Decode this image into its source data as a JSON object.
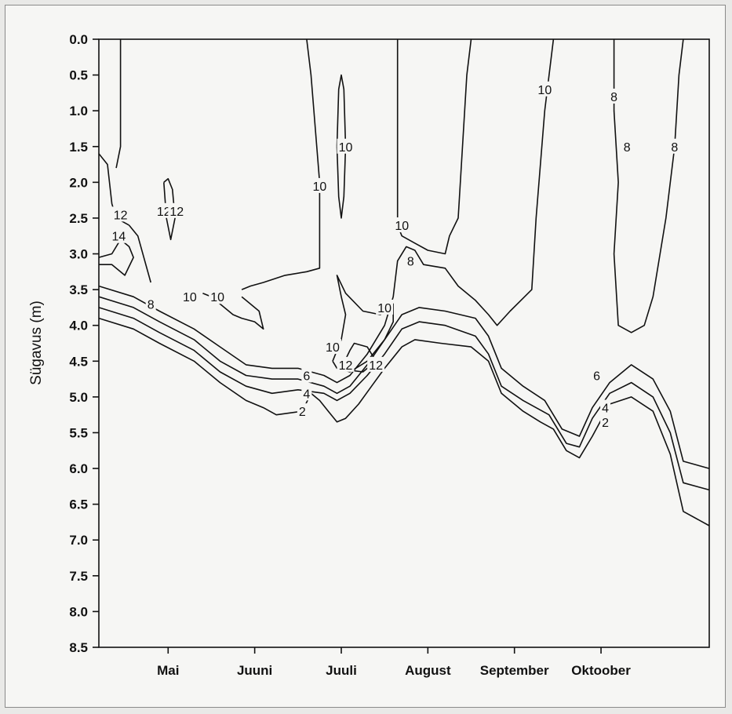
{
  "chart_data": {
    "type": "contour",
    "title": "",
    "xlabel": "",
    "ylabel": "Sügavus (m)",
    "y_axis": {
      "min": 0.0,
      "max": 8.5,
      "inverted": true,
      "ticks": [
        "0.0",
        "0.5",
        "1.0",
        "1.5",
        "2.0",
        "2.5",
        "3.0",
        "3.5",
        "4.0",
        "4.5",
        "5.0",
        "5.5",
        "6.0",
        "6.5",
        "7.0",
        "7.5",
        "8.0",
        "8.5"
      ]
    },
    "x_axis": {
      "categories": [
        "Mai",
        "Juuni",
        "Juuli",
        "August",
        "September",
        "Oktoober"
      ],
      "range_months": [
        3.2,
        10.25
      ]
    },
    "contour_levels": [
      "2",
      "4",
      "6",
      "8",
      "10",
      "12",
      "14"
    ],
    "contours": [
      {
        "level": 2,
        "points": [
          [
            3.2,
            3.9
          ],
          [
            3.6,
            4.05
          ],
          [
            3.9,
            4.25
          ],
          [
            4.3,
            4.5
          ],
          [
            4.6,
            4.8
          ],
          [
            4.9,
            5.05
          ],
          [
            5.1,
            5.15
          ],
          [
            5.25,
            5.25
          ],
          [
            5.55,
            5.2
          ],
          [
            5.65,
            4.95
          ],
          [
            5.75,
            5.05
          ],
          [
            5.85,
            5.2
          ],
          [
            5.95,
            5.35
          ],
          [
            6.05,
            5.3
          ],
          [
            6.2,
            5.1
          ],
          [
            6.35,
            4.85
          ],
          [
            6.5,
            4.6
          ],
          [
            6.7,
            4.3
          ],
          [
            6.85,
            4.2
          ],
          [
            7.15,
            4.25
          ],
          [
            7.5,
            4.3
          ],
          [
            7.7,
            4.5
          ],
          [
            7.85,
            4.95
          ],
          [
            8.1,
            5.2
          ],
          [
            8.3,
            5.35
          ],
          [
            8.45,
            5.45
          ],
          [
            8.6,
            5.75
          ],
          [
            8.75,
            5.85
          ],
          [
            8.9,
            5.55
          ],
          [
            9.1,
            5.1
          ],
          [
            9.35,
            5.0
          ],
          [
            9.6,
            5.2
          ],
          [
            9.8,
            5.8
          ],
          [
            9.95,
            6.6
          ],
          [
            10.25,
            6.8
          ]
        ]
      },
      {
        "level": 4,
        "points": [
          [
            3.2,
            3.75
          ],
          [
            3.6,
            3.9
          ],
          [
            3.9,
            4.1
          ],
          [
            4.3,
            4.35
          ],
          [
            4.6,
            4.65
          ],
          [
            4.9,
            4.85
          ],
          [
            5.2,
            4.95
          ],
          [
            5.5,
            4.9
          ],
          [
            5.8,
            4.95
          ],
          [
            5.95,
            5.05
          ],
          [
            6.1,
            4.95
          ],
          [
            6.3,
            4.7
          ],
          [
            6.5,
            4.4
          ],
          [
            6.7,
            4.05
          ],
          [
            6.9,
            3.95
          ],
          [
            7.2,
            4.0
          ],
          [
            7.55,
            4.15
          ],
          [
            7.7,
            4.4
          ],
          [
            7.85,
            4.85
          ],
          [
            8.1,
            5.05
          ],
          [
            8.4,
            5.25
          ],
          [
            8.6,
            5.65
          ],
          [
            8.75,
            5.7
          ],
          [
            8.9,
            5.3
          ],
          [
            9.1,
            4.95
          ],
          [
            9.35,
            4.8
          ],
          [
            9.6,
            5.0
          ],
          [
            9.8,
            5.5
          ],
          [
            9.95,
            6.2
          ],
          [
            10.25,
            6.3
          ]
        ]
      },
      {
        "level": 6,
        "points": [
          [
            3.2,
            3.6
          ],
          [
            3.6,
            3.75
          ],
          [
            3.9,
            3.95
          ],
          [
            4.3,
            4.2
          ],
          [
            4.6,
            4.5
          ],
          [
            4.9,
            4.7
          ],
          [
            5.2,
            4.75
          ],
          [
            5.5,
            4.75
          ],
          [
            5.8,
            4.85
          ],
          [
            5.95,
            4.95
          ],
          [
            6.1,
            4.85
          ],
          [
            6.3,
            4.55
          ],
          [
            6.5,
            4.2
          ],
          [
            6.7,
            3.85
          ],
          [
            6.9,
            3.75
          ],
          [
            7.2,
            3.8
          ],
          [
            7.55,
            3.9
          ],
          [
            7.7,
            4.15
          ],
          [
            7.85,
            4.6
          ],
          [
            8.1,
            4.85
          ],
          [
            8.35,
            5.05
          ],
          [
            8.55,
            5.45
          ],
          [
            8.75,
            5.55
          ],
          [
            8.9,
            5.15
          ],
          [
            9.1,
            4.8
          ],
          [
            9.35,
            4.55
          ],
          [
            9.6,
            4.75
          ],
          [
            9.8,
            5.2
          ],
          [
            9.95,
            5.9
          ],
          [
            10.25,
            6.0
          ]
        ]
      },
      {
        "level": 8,
        "points": [
          [
            3.2,
            3.45
          ],
          [
            3.6,
            3.6
          ],
          [
            3.9,
            3.8
          ],
          [
            4.3,
            4.05
          ],
          [
            4.6,
            4.3
          ],
          [
            4.9,
            4.55
          ],
          [
            5.2,
            4.6
          ],
          [
            5.5,
            4.6
          ],
          [
            5.8,
            4.7
          ],
          [
            5.95,
            4.8
          ],
          [
            6.1,
            4.7
          ],
          [
            6.3,
            4.4
          ],
          [
            6.5,
            4.0
          ],
          [
            6.6,
            3.6
          ],
          [
            6.65,
            3.1
          ],
          [
            6.75,
            2.9
          ],
          [
            6.85,
            2.95
          ],
          [
            6.95,
            3.15
          ],
          [
            7.2,
            3.2
          ],
          [
            7.35,
            3.45
          ],
          [
            7.55,
            3.65
          ],
          [
            7.7,
            3.85
          ],
          [
            7.8,
            4.0
          ],
          [
            7.95,
            3.8
          ],
          [
            8.2,
            3.5
          ],
          [
            8.25,
            2.5
          ],
          [
            8.35,
            1.0
          ],
          [
            8.45,
            0.0
          ]
        ]
      },
      {
        "level": 8,
        "points": [
          [
            9.15,
            0.0
          ],
          [
            9.15,
            1.0
          ],
          [
            9.2,
            2.0
          ],
          [
            9.15,
            3.0
          ],
          [
            9.2,
            4.0
          ],
          [
            9.35,
            4.1
          ],
          [
            9.5,
            4.0
          ],
          [
            9.6,
            3.6
          ],
          [
            9.75,
            2.5
          ],
          [
            9.85,
            1.5
          ],
          [
            9.9,
            0.5
          ],
          [
            9.95,
            0.0
          ]
        ]
      },
      {
        "level": 10,
        "points": [
          [
            4.85,
            3.5
          ],
          [
            4.95,
            3.45
          ],
          [
            5.1,
            3.4
          ],
          [
            5.35,
            3.3
          ],
          [
            5.6,
            3.25
          ],
          [
            5.75,
            3.2
          ],
          [
            5.75,
            2.0
          ],
          [
            5.65,
            0.5
          ],
          [
            5.6,
            0.0
          ]
        ]
      },
      {
        "level": 10,
        "points": [
          [
            6.65,
            0.0
          ],
          [
            6.65,
            1.5
          ],
          [
            6.65,
            2.6
          ],
          [
            6.7,
            2.75
          ],
          [
            6.85,
            2.85
          ],
          [
            7.0,
            2.95
          ],
          [
            7.2,
            3.0
          ],
          [
            7.25,
            2.75
          ],
          [
            7.35,
            2.5
          ],
          [
            7.4,
            1.5
          ],
          [
            7.45,
            0.5
          ],
          [
            7.5,
            0.0
          ]
        ]
      },
      {
        "level": 10,
        "points": [
          [
            4.4,
            3.55
          ],
          [
            4.5,
            3.6
          ],
          [
            4.6,
            3.7
          ],
          [
            4.75,
            3.85
          ],
          [
            4.85,
            3.9
          ],
          [
            5.0,
            3.95
          ],
          [
            5.1,
            4.05
          ],
          [
            5.05,
            3.8
          ],
          [
            4.85,
            3.6
          ]
        ]
      },
      {
        "level": 10,
        "points": [
          [
            5.9,
            4.5
          ],
          [
            6.0,
            4.2
          ],
          [
            6.05,
            3.85
          ],
          [
            6.0,
            3.6
          ],
          [
            5.95,
            3.3
          ],
          [
            6.05,
            3.55
          ],
          [
            6.25,
            3.8
          ],
          [
            6.45,
            3.85
          ],
          [
            6.6,
            3.7
          ],
          [
            6.6,
            3.95
          ],
          [
            6.5,
            4.2
          ],
          [
            6.3,
            4.5
          ],
          [
            6.1,
            4.65
          ],
          [
            5.95,
            4.6
          ],
          [
            5.9,
            4.5
          ]
        ]
      },
      {
        "level": 10,
        "points": [
          [
            5.95,
            1.5
          ],
          [
            5.97,
            0.7
          ],
          [
            6.0,
            0.5
          ],
          [
            6.03,
            0.7
          ],
          [
            6.05,
            1.5
          ],
          [
            6.03,
            2.2
          ],
          [
            6.0,
            2.5
          ],
          [
            5.97,
            2.2
          ],
          [
            5.95,
            1.5
          ]
        ]
      },
      {
        "level": 12,
        "points": [
          [
            3.2,
            1.6
          ],
          [
            3.3,
            1.75
          ],
          [
            3.35,
            2.3
          ],
          [
            3.4,
            2.5
          ],
          [
            3.55,
            2.6
          ]
        ]
      },
      {
        "level": 12,
        "points": [
          [
            3.4,
            1.8
          ],
          [
            3.45,
            1.5
          ],
          [
            3.45,
            0.0
          ]
        ]
      },
      {
        "level": 12,
        "points": [
          [
            3.55,
            2.6
          ],
          [
            3.65,
            2.75
          ],
          [
            3.8,
            3.4
          ]
        ]
      },
      {
        "level": 12,
        "points": [
          [
            3.95,
            2.0
          ],
          [
            4.0,
            1.95
          ],
          [
            4.05,
            2.1
          ],
          [
            4.08,
            2.5
          ],
          [
            4.03,
            2.8
          ],
          [
            3.98,
            2.5
          ],
          [
            3.95,
            2.0
          ]
        ]
      },
      {
        "level": 12,
        "points": [
          [
            6.0,
            4.6
          ],
          [
            6.1,
            4.35
          ],
          [
            6.15,
            4.25
          ],
          [
            6.3,
            4.3
          ],
          [
            6.4,
            4.5
          ],
          [
            6.25,
            4.65
          ],
          [
            6.05,
            4.62
          ],
          [
            6.0,
            4.6
          ]
        ]
      },
      {
        "level": 14,
        "points": [
          [
            3.2,
            3.05
          ],
          [
            3.35,
            3.0
          ],
          [
            3.45,
            2.8
          ],
          [
            3.55,
            2.9
          ],
          [
            3.6,
            3.05
          ],
          [
            3.5,
            3.3
          ],
          [
            3.35,
            3.15
          ],
          [
            3.2,
            3.15
          ]
        ]
      }
    ],
    "contour_labels": [
      {
        "text": "12",
        "x": 3.45,
        "y": 2.45
      },
      {
        "text": "14",
        "x": 3.43,
        "y": 2.75
      },
      {
        "text": "12",
        "x": 3.95,
        "y": 2.4
      },
      {
        "text": "12",
        "x": 4.1,
        "y": 2.4
      },
      {
        "text": "8",
        "x": 3.8,
        "y": 3.7
      },
      {
        "text": "10",
        "x": 4.25,
        "y": 3.6
      },
      {
        "text": "10",
        "x": 4.57,
        "y": 3.6
      },
      {
        "text": "10",
        "x": 5.75,
        "y": 2.05
      },
      {
        "text": "10",
        "x": 6.05,
        "y": 1.5
      },
      {
        "text": "10",
        "x": 5.9,
        "y": 4.3
      },
      {
        "text": "12",
        "x": 6.05,
        "y": 4.55
      },
      {
        "text": "12",
        "x": 6.4,
        "y": 4.55
      },
      {
        "text": "10",
        "x": 6.5,
        "y": 3.75
      },
      {
        "text": "10",
        "x": 6.7,
        "y": 2.6
      },
      {
        "text": "8",
        "x": 6.8,
        "y": 3.1
      },
      {
        "text": "10",
        "x": 8.35,
        "y": 0.7
      },
      {
        "text": "8",
        "x": 9.15,
        "y": 0.8
      },
      {
        "text": "8",
        "x": 9.3,
        "y": 1.5
      },
      {
        "text": "8",
        "x": 9.85,
        "y": 1.5
      },
      {
        "text": "6",
        "x": 5.6,
        "y": 4.7
      },
      {
        "text": "4",
        "x": 5.6,
        "y": 4.95
      },
      {
        "text": "2",
        "x": 5.55,
        "y": 5.2
      },
      {
        "text": "6",
        "x": 8.95,
        "y": 4.7
      },
      {
        "text": "4",
        "x": 9.05,
        "y": 5.15
      },
      {
        "text": "2",
        "x": 9.05,
        "y": 5.35
      }
    ],
    "grid": false
  }
}
